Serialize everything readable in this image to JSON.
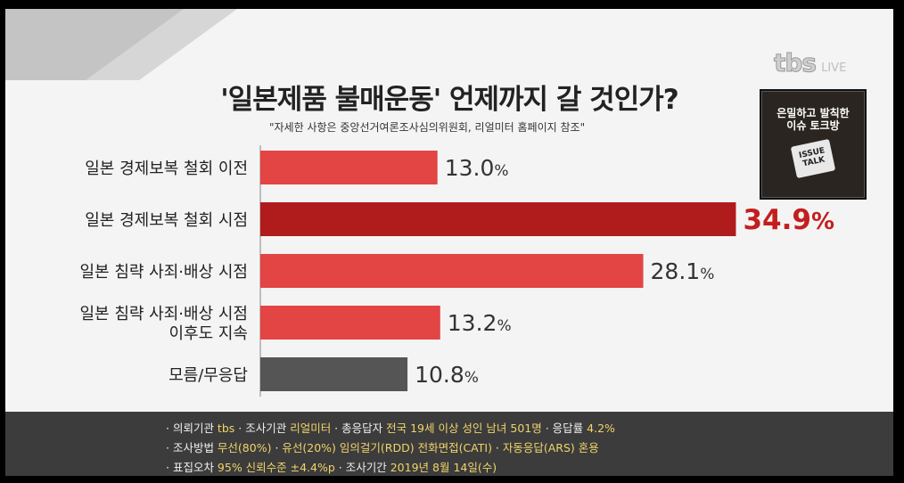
{
  "broadcaster": {
    "logo_text": "tbs",
    "live_label": "LIVE"
  },
  "badge": {
    "line1": "은밀하고 발칙한",
    "line2": "이슈 토크방",
    "tag": "ISSUE TALK"
  },
  "chart_data": {
    "type": "bar",
    "orientation": "horizontal",
    "title": "'일본제품 불매운동' 언제까지 갈 것인가?",
    "subtitle": "\"자세한 사항은 중앙선거여론조사심의위원회, 리얼미터 홈페이지 참조\"",
    "categories": [
      [
        "일본 경제보복 철회 이전"
      ],
      [
        "일본 경제보복 철회 시점"
      ],
      [
        "일본 침략 사죄·배상 시점"
      ],
      [
        "일본 침략 사죄·배상 시점",
        "이후도 지속"
      ],
      [
        "모름/무응답"
      ]
    ],
    "values": [
      13.0,
      34.9,
      28.1,
      13.2,
      10.8
    ],
    "value_labels": [
      "13.0",
      "34.9",
      "28.1",
      "13.2",
      "10.8"
    ],
    "unit": "%",
    "highlight_index": 1,
    "colors": {
      "normal": "#e34444",
      "highlight": "#b01c1c",
      "neutral": "#555555",
      "highlight_text": "#c41e1e",
      "label_text": "#222222"
    },
    "xlim": [
      0,
      35
    ]
  },
  "footer": {
    "lines": [
      [
        {
          "t": "· 의뢰기관 ",
          "h": false
        },
        {
          "t": "tbs",
          "h": true
        },
        {
          "t": "  · 조사기관 ",
          "h": false
        },
        {
          "t": "리얼미터",
          "h": true
        },
        {
          "t": "  · 총응답자 ",
          "h": false
        },
        {
          "t": "전국 19세 이상 성인 남녀 501명",
          "h": true
        },
        {
          "t": "   · 응답률 ",
          "h": false
        },
        {
          "t": "4.2%",
          "h": true
        }
      ],
      [
        {
          "t": "· 조사방법 ",
          "h": false
        },
        {
          "t": "무선(80%)",
          "h": true
        },
        {
          "t": " · ",
          "h": false
        },
        {
          "t": "유선(20%) 임의걸기(RDD) 전화면접(CATI)",
          "h": true
        },
        {
          "t": " · ",
          "h": false
        },
        {
          "t": "자동응답(ARS) 혼용",
          "h": true
        }
      ],
      [
        {
          "t": "· 표집오차 ",
          "h": false
        },
        {
          "t": "95% 신뢰수준 ±4.4%p",
          "h": true
        },
        {
          "t": "  · 조사기간 ",
          "h": false
        },
        {
          "t": "2019년 8월 14일(수)",
          "h": true
        }
      ]
    ]
  }
}
